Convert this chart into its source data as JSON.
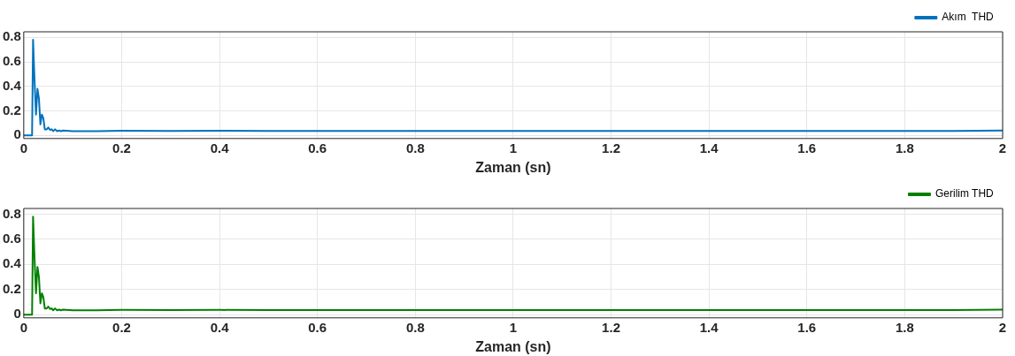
{
  "chart_data": [
    {
      "type": "line",
      "xlabel": "Zaman (sn)",
      "xlim": [
        0,
        2
      ],
      "xticks": [
        0,
        0.2,
        0.4,
        0.6,
        0.8,
        1,
        1.2,
        1.4,
        1.6,
        1.8,
        2
      ],
      "ylim": [
        -0.025,
        0.845
      ],
      "yticks": [
        0,
        0.2,
        0.4,
        0.6,
        0.8
      ],
      "grid": true,
      "legend": "top right",
      "marker": "none",
      "line_style": "solid",
      "series": [
        {
          "name": "Akım  THD",
          "color": "#0072bd",
          "x": [
            0,
            0.017,
            0.019,
            0.022,
            0.025,
            0.028,
            0.031,
            0.034,
            0.037,
            0.04,
            0.043,
            0.047,
            0.05,
            0.054,
            0.057,
            0.06,
            0.064,
            0.068,
            0.072,
            0.076,
            0.08,
            0.1,
            0.15,
            0.2,
            0.3,
            0.4,
            0.5,
            0.6,
            0.7,
            0.8,
            0.9,
            1.0,
            1.1,
            1.2,
            1.3,
            1.4,
            1.5,
            1.6,
            1.7,
            1.8,
            1.9,
            2.0
          ],
          "values": [
            0,
            0,
            0.78,
            0.45,
            0.17,
            0.38,
            0.3,
            0.09,
            0.17,
            0.14,
            0.05,
            0.05,
            0.065,
            0.045,
            0.05,
            0.035,
            0.05,
            0.035,
            0.04,
            0.035,
            0.04,
            0.035,
            0.035,
            0.038,
            0.036,
            0.038,
            0.036,
            0.037,
            0.036,
            0.037,
            0.036,
            0.037,
            0.036,
            0.037,
            0.036,
            0.037,
            0.036,
            0.037,
            0.036,
            0.037,
            0.036,
            0.04
          ]
        }
      ]
    },
    {
      "type": "line",
      "xlabel": "Zaman (sn)",
      "xlim": [
        0,
        2
      ],
      "xticks": [
        0,
        0.2,
        0.4,
        0.6,
        0.8,
        1,
        1.2,
        1.4,
        1.6,
        1.8,
        2
      ],
      "ylim": [
        -0.025,
        0.845
      ],
      "yticks": [
        0,
        0.2,
        0.4,
        0.6,
        0.8
      ],
      "grid": true,
      "legend": "top right",
      "marker": "none",
      "line_style": "solid",
      "series": [
        {
          "name": "Gerilim THD",
          "color": "#008000",
          "x": [
            0,
            0.017,
            0.019,
            0.022,
            0.025,
            0.028,
            0.031,
            0.034,
            0.037,
            0.04,
            0.043,
            0.047,
            0.05,
            0.054,
            0.057,
            0.06,
            0.064,
            0.068,
            0.072,
            0.076,
            0.08,
            0.1,
            0.15,
            0.2,
            0.3,
            0.4,
            0.5,
            0.6,
            0.7,
            0.8,
            0.9,
            1.0,
            1.1,
            1.2,
            1.3,
            1.4,
            1.5,
            1.6,
            1.7,
            1.8,
            1.9,
            2.0
          ],
          "values": [
            0,
            0,
            0.78,
            0.45,
            0.17,
            0.38,
            0.3,
            0.09,
            0.17,
            0.14,
            0.05,
            0.05,
            0.065,
            0.045,
            0.05,
            0.035,
            0.05,
            0.035,
            0.04,
            0.035,
            0.04,
            0.035,
            0.035,
            0.038,
            0.036,
            0.038,
            0.036,
            0.037,
            0.036,
            0.037,
            0.036,
            0.037,
            0.036,
            0.037,
            0.036,
            0.037,
            0.036,
            0.037,
            0.036,
            0.037,
            0.036,
            0.04
          ]
        }
      ]
    }
  ]
}
